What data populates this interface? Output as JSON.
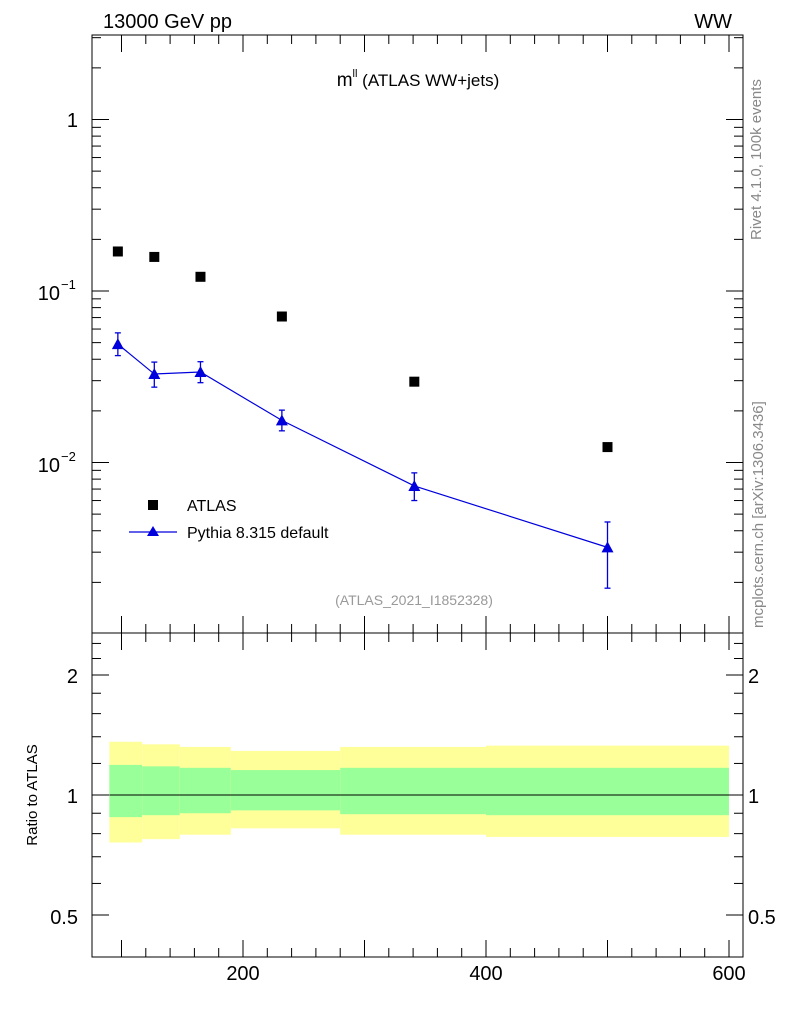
{
  "header": {
    "left": "13000 GeV pp",
    "right": "WW"
  },
  "side_labels": {
    "rivet": "Rivet 4.1.0,  100k events",
    "mcplots": "mcplots.cern.ch [arXiv:1306.3436]"
  },
  "colors": {
    "atlas": "#000000",
    "pythia": "#0000dd",
    "band_outer": "#ffff99",
    "band_inner": "#99ff99"
  },
  "chart_data": [
    {
      "type": "scatter",
      "panel": "main",
      "title_main": "m",
      "title_sup": "ll",
      "title_rest": " (ATLAS WW+jets)",
      "analysis": "(ATLAS_2021_I1852328)",
      "yscale": "log",
      "xlim": [
        80,
        600
      ],
      "ylim": [
        0.0012,
        3.2
      ],
      "y_tick_labels": [
        {
          "value": 1,
          "base": "1",
          "exp": ""
        },
        {
          "value": 0.1,
          "base": "10",
          "exp": "−1"
        },
        {
          "value": 0.01,
          "base": "10",
          "exp": "−2"
        }
      ],
      "legend": [
        {
          "name": "ATLAS",
          "marker": "square"
        },
        {
          "name": "Pythia 8.315 default",
          "marker": "triangle"
        }
      ],
      "series": [
        {
          "name": "ATLAS",
          "marker": "square",
          "x": [
            97,
            127,
            165,
            232,
            341,
            500
          ],
          "y": [
            0.17,
            0.158,
            0.121,
            0.071,
            0.0296,
            0.0123
          ]
        },
        {
          "name": "Pythia 8.315 default",
          "marker": "triangle",
          "x": [
            97,
            127,
            165,
            232,
            341,
            500
          ],
          "y": [
            0.049,
            0.0328,
            0.0337,
            0.0176,
            0.0073,
            0.0032
          ],
          "yerr_low": [
            0.042,
            0.0275,
            0.0292,
            0.0153,
            0.006,
            0.00185
          ],
          "yerr_high": [
            0.057,
            0.0385,
            0.0387,
            0.0202,
            0.0087,
            0.0045
          ]
        }
      ]
    },
    {
      "type": "area",
      "panel": "ratio",
      "ylabel": "Ratio to ATLAS",
      "xlim": [
        80,
        600
      ],
      "ylim": [
        0.4,
        2.5
      ],
      "x_ticks": [
        200,
        400,
        600
      ],
      "x_tick_labels": [
        "200",
        "400",
        "600"
      ],
      "y_ticks": [
        0.5,
        1,
        2
      ],
      "y_tick_labels": [
        "0.5",
        "1",
        "2"
      ],
      "bins": [
        {
          "x0": 90,
          "x1": 117,
          "outer": [
            0.76,
            1.36
          ],
          "inner": [
            0.88,
            1.19
          ]
        },
        {
          "x0": 117,
          "x1": 148,
          "outer": [
            0.775,
            1.34
          ],
          "inner": [
            0.89,
            1.18
          ]
        },
        {
          "x0": 148,
          "x1": 190,
          "outer": [
            0.795,
            1.32
          ],
          "inner": [
            0.9,
            1.17
          ]
        },
        {
          "x0": 190,
          "x1": 280,
          "outer": [
            0.825,
            1.29
          ],
          "inner": [
            0.915,
            1.155
          ]
        },
        {
          "x0": 280,
          "x1": 400,
          "outer": [
            0.795,
            1.32
          ],
          "inner": [
            0.895,
            1.17
          ]
        },
        {
          "x0": 400,
          "x1": 600,
          "outer": [
            0.785,
            1.33
          ],
          "inner": [
            0.89,
            1.17
          ]
        }
      ],
      "reference": 1
    }
  ]
}
